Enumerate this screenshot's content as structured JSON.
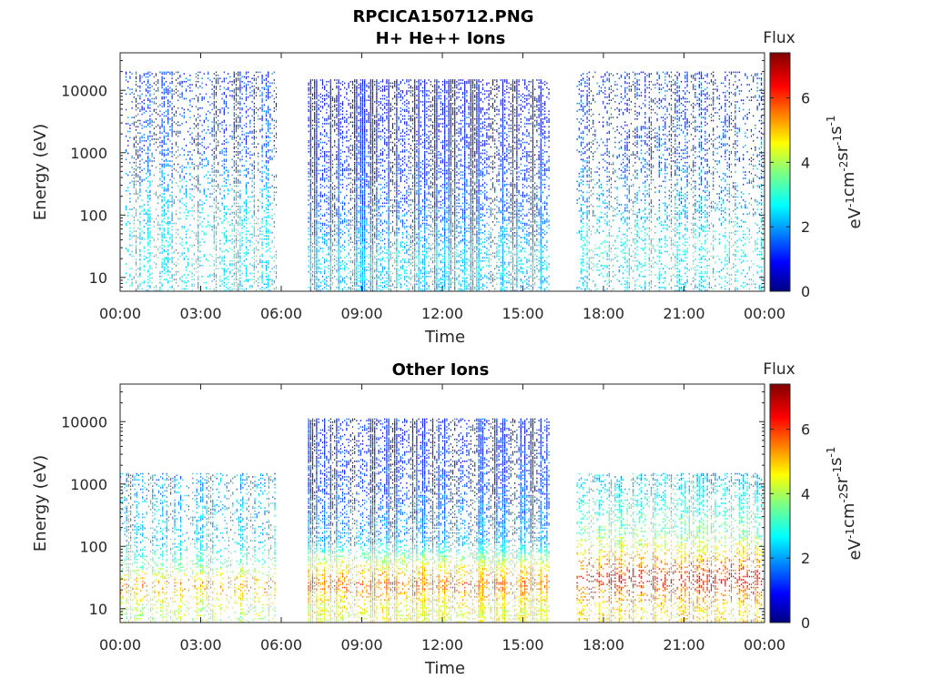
{
  "figure_title": "RPCICA150712.PNG",
  "chart_data": [
    {
      "type": "heatmap",
      "title": "H+ He++ Ions",
      "xlabel": "Time",
      "ylabel": "Energy (eV)",
      "x_ticks": [
        "00:00",
        "03:00",
        "06:00",
        "09:00",
        "12:00",
        "15:00",
        "18:00",
        "21:00",
        "00:00"
      ],
      "x_range_hours": [
        0,
        24
      ],
      "y_scale": "log",
      "y_ticks": [
        "10",
        "100",
        "1000",
        "10000"
      ],
      "ylim": [
        6,
        40000
      ],
      "colorbar": {
        "title": "Flux",
        "label": "eV-1cm-2sr-1s-1",
        "ticks": [
          "0",
          "2",
          "4",
          "6"
        ],
        "range": [
          0,
          7.4
        ],
        "colormap": "jet"
      },
      "data_gaps_hours": [
        [
          5.8,
          7.0
        ],
        [
          16.0,
          17.0
        ]
      ],
      "segments": [
        {
          "start_h": 0.2,
          "end_h": 5.8,
          "flux_by_energy": [
            [
              10,
              2.5
            ],
            [
              40,
              2.6
            ],
            [
              120,
              2.3
            ],
            [
              1000,
              1.4
            ],
            [
              10000,
              1.2
            ]
          ],
          "max_energy": 20000,
          "density": 0.55
        },
        {
          "start_h": 7.0,
          "end_h": 16.0,
          "flux_by_energy": [
            [
              10,
              2.2
            ],
            [
              20,
              2.4
            ],
            [
              40,
              1.9
            ],
            [
              120,
              1.5
            ],
            [
              1000,
              1.0
            ],
            [
              10000,
              0.8
            ]
          ],
          "max_energy": 15000,
          "density": 0.95
        },
        {
          "start_h": 17.0,
          "end_h": 23.9,
          "flux_by_energy": [
            [
              10,
              2.4
            ],
            [
              30,
              2.8
            ],
            [
              100,
              2.0
            ],
            [
              1000,
              1.3
            ],
            [
              10000,
              1.1
            ]
          ],
          "max_energy": 20000,
          "density": 0.45
        }
      ]
    },
    {
      "type": "heatmap",
      "title": "Other Ions",
      "xlabel": "Time",
      "ylabel": "Energy (eV)",
      "x_ticks": [
        "00:00",
        "03:00",
        "06:00",
        "09:00",
        "12:00",
        "15:00",
        "18:00",
        "21:00",
        "00:00"
      ],
      "x_range_hours": [
        0,
        24
      ],
      "y_scale": "log",
      "y_ticks": [
        "10",
        "100",
        "1000",
        "10000"
      ],
      "ylim": [
        6,
        40000
      ],
      "colorbar": {
        "title": "Flux",
        "label": "eV-1cm-2sr-1s-1",
        "ticks": [
          "0",
          "2",
          "4",
          "6"
        ],
        "range": [
          0,
          7.4
        ],
        "colormap": "jet"
      },
      "data_gaps_hours": [
        [
          5.8,
          7.0
        ],
        [
          16.0,
          17.0
        ]
      ],
      "segments": [
        {
          "start_h": 0.0,
          "end_h": 5.8,
          "flux_by_energy": [
            [
              10,
              4.0
            ],
            [
              25,
              5.4
            ],
            [
              40,
              3.8
            ],
            [
              120,
              2.3
            ],
            [
              1000,
              2.0
            ],
            [
              1500,
              1.8
            ]
          ],
          "max_energy": 1500,
          "density": 0.5
        },
        {
          "start_h": 7.0,
          "end_h": 16.0,
          "flux_by_energy": [
            [
              10,
              4.5
            ],
            [
              25,
              5.6
            ],
            [
              45,
              4.6
            ],
            [
              120,
              2.0
            ],
            [
              1000,
              1.2
            ],
            [
              10000,
              1.0
            ]
          ],
          "max_energy": 11000,
          "density": 0.9
        },
        {
          "start_h": 17.0,
          "end_h": 23.9,
          "flux_by_energy": [
            [
              10,
              4.8
            ],
            [
              30,
              6.5
            ],
            [
              60,
              5.2
            ],
            [
              150,
              3.6
            ],
            [
              500,
              2.8
            ],
            [
              1000,
              2.2
            ]
          ],
          "max_energy": 1500,
          "density": 0.6
        }
      ]
    }
  ]
}
